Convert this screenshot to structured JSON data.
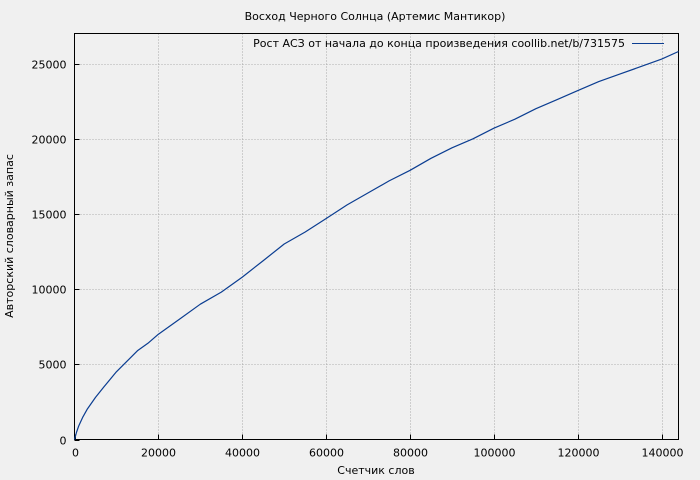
{
  "chart_data": {
    "type": "line",
    "title": "Восход Черного Солнца (Артемис Мантикор)",
    "xlabel": "Счетчик слов",
    "ylabel": "Авторский словарный запас",
    "xlim": [
      0,
      144000
    ],
    "ylim": [
      0,
      27000
    ],
    "grid": true,
    "legend_position": "top-right",
    "line_color": "#0b3d91",
    "x_ticks": [
      0,
      20000,
      40000,
      60000,
      80000,
      100000,
      120000,
      140000
    ],
    "x_tick_labels": [
      "0",
      "20000",
      "40000",
      "60000",
      "80000",
      "100000",
      "120000",
      "140000"
    ],
    "y_ticks": [
      0,
      5000,
      10000,
      15000,
      20000,
      25000
    ],
    "y_tick_labels": [
      "0",
      "5000",
      "10000",
      "15000",
      "20000",
      "25000"
    ],
    "series": [
      {
        "name": "Рост АСЗ от начала до конца произведения coollib.net/b/731575",
        "x": [
          0,
          500,
          1000,
          2000,
          3000,
          5000,
          7000,
          10000,
          12500,
          15000,
          17500,
          20000,
          25000,
          30000,
          35000,
          40000,
          45000,
          50000,
          55000,
          60000,
          65000,
          70000,
          75000,
          80000,
          85000,
          90000,
          95000,
          100000,
          105000,
          110000,
          115000,
          120000,
          125000,
          130000,
          135000,
          140000,
          144000
        ],
        "y": [
          0,
          500,
          900,
          1500,
          2000,
          2800,
          3500,
          4500,
          5200,
          5900,
          6400,
          7000,
          8000,
          9000,
          9800,
          10800,
          11900,
          13000,
          13800,
          14700,
          15600,
          16400,
          17200,
          17900,
          18700,
          19400,
          20000,
          20700,
          21300,
          22000,
          22600,
          23200,
          23800,
          24300,
          24800,
          25300,
          25800
        ]
      }
    ]
  }
}
